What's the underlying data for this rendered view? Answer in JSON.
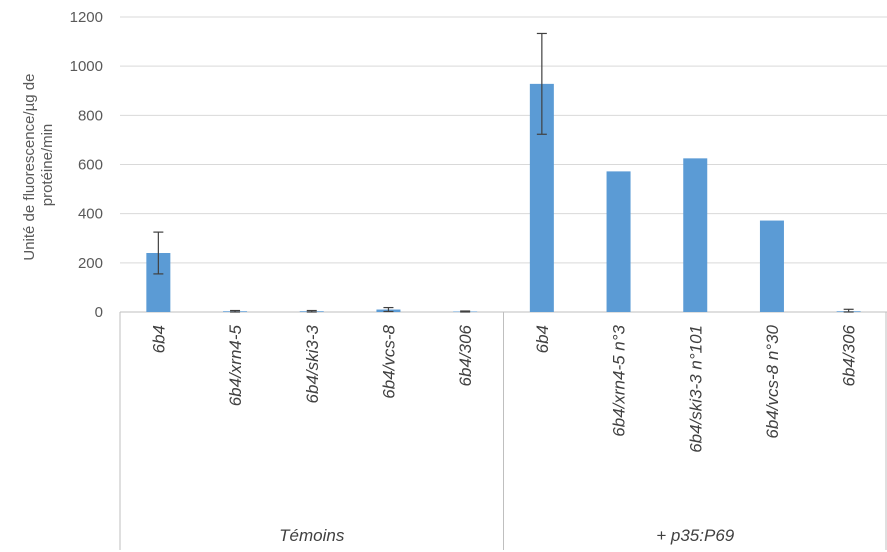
{
  "chart_data": {
    "type": "bar",
    "ylabel": [
      "Unité de fluorescence/µg de",
      "protéine/min"
    ],
    "ylim": [
      0,
      1200
    ],
    "yticks": [
      "0",
      "200",
      "400",
      "600",
      "800",
      "1000",
      "1200"
    ],
    "grid": true,
    "bar_color": "#5B9BD5",
    "groups": [
      {
        "label": "Témoins",
        "count": 5
      },
      {
        "label": "+ p35:P69",
        "count": 5
      }
    ],
    "categories": [
      "6b4",
      "6b4/xrn4-5",
      "6b4/ski3-3",
      "6b4/vcs-8",
      "6b4/306",
      "6b4",
      "6b4/xrn4-5 n°3",
      "6b4/ski3-3 n°101",
      "6b4/vcs-8 n°30",
      "6b4/306"
    ],
    "values": [
      240,
      3,
      3,
      10,
      2,
      928,
      572,
      625,
      372,
      3
    ],
    "errors": [
      85,
      3,
      3,
      8,
      2,
      205,
      0,
      0,
      0,
      8
    ]
  }
}
